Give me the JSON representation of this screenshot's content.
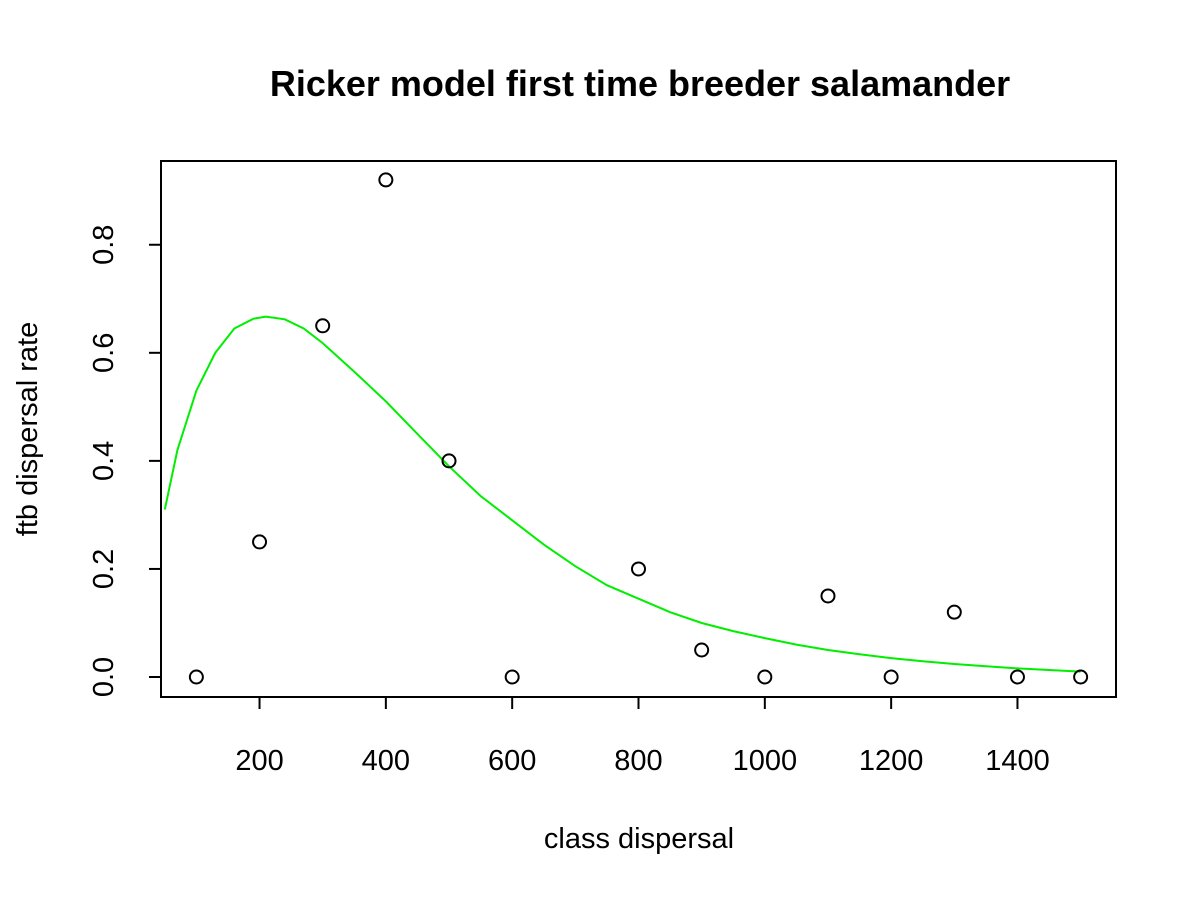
{
  "chart_data": {
    "type": "scatter",
    "title": "Ricker model first time breeder salamander",
    "xlabel": "class dispersal",
    "ylabel": "ftb dispersal rate",
    "xlim": [
      44,
      1556
    ],
    "ylim": [
      -0.037,
      0.955
    ],
    "x_ticks": [
      200,
      400,
      600,
      800,
      1000,
      1200,
      1400
    ],
    "y_ticks": [
      0.0,
      0.2,
      0.4,
      0.6,
      0.8
    ],
    "x_tick_labels": [
      "200",
      "400",
      "600",
      "800",
      "1000",
      "1200",
      "1400"
    ],
    "y_tick_labels": [
      "0.0",
      "0.2",
      "0.4",
      "0.6",
      "0.8"
    ],
    "grid": false,
    "legend": "none",
    "series": [
      {
        "type": "scatter",
        "marker": "open-circle",
        "color": "#000000",
        "x": [
          100,
          200,
          300,
          400,
          500,
          600,
          800,
          900,
          1000,
          1100,
          1200,
          1300,
          1400,
          1500
        ],
        "y": [
          0.0,
          0.25,
          0.65,
          0.92,
          0.4,
          0.0,
          0.2,
          0.05,
          0.0,
          0.15,
          0.0,
          0.12,
          0.0,
          0.0
        ]
      },
      {
        "type": "line",
        "color": "#00ee00",
        "x": [
          50,
          70,
          100,
          130,
          160,
          190,
          210,
          240,
          270,
          300,
          350,
          400,
          450,
          500,
          550,
          600,
          650,
          700,
          750,
          800,
          850,
          900,
          950,
          1000,
          1050,
          1100,
          1150,
          1200,
          1250,
          1300,
          1350,
          1400,
          1450,
          1500
        ],
        "y": [
          0.31,
          0.42,
          0.53,
          0.6,
          0.645,
          0.663,
          0.667,
          0.662,
          0.645,
          0.618,
          0.565,
          0.51,
          0.45,
          0.39,
          0.335,
          0.29,
          0.245,
          0.205,
          0.17,
          0.145,
          0.12,
          0.1,
          0.085,
          0.072,
          0.06,
          0.05,
          0.042,
          0.035,
          0.029,
          0.024,
          0.02,
          0.016,
          0.013,
          0.01
        ]
      }
    ]
  }
}
